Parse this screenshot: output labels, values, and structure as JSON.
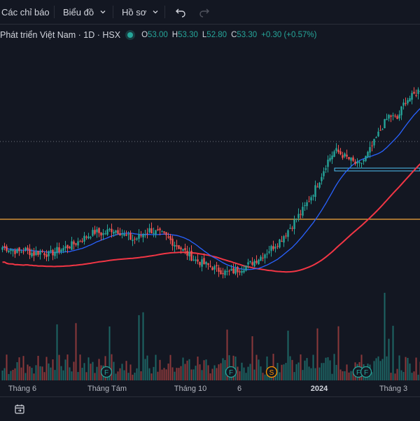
{
  "toolbar": {
    "indicators_label": "Các chỉ báo",
    "chart_type_label": "Biểu đồ",
    "profile_label": "Hồ sơ"
  },
  "legend": {
    "symbol": "Phát triển Việt Nam · 1D · HSX",
    "open_label": "O",
    "open": "53.00",
    "high_label": "H",
    "high": "53.30",
    "low_label": "L",
    "low": "52.80",
    "close_label": "C",
    "close": "53.30",
    "change": "+0.30 (+0.57%)"
  },
  "colors": {
    "up": "#26a69a",
    "down": "#ef5350",
    "ma_fast": "#2962ff",
    "ma_slow": "#f23645",
    "hline_orange": "#f7a93b",
    "hline_dotted": "#b2b5be",
    "hline_blue": "#4fc3f7"
  },
  "chart_data": {
    "type": "candlestick",
    "x_ticks": [
      "Tháng 6",
      "Tháng Tám",
      "Tháng 10",
      "6",
      "2024",
      "Tháng 3"
    ],
    "event_markers": [
      "F",
      "F",
      "S",
      "F",
      "F"
    ],
    "close_series": [
      34.0,
      33.8,
      33.4,
      33.7,
      33.2,
      33.5,
      33.1,
      33.6,
      33.9,
      34.3,
      34.8,
      35.4,
      35.9,
      35.6,
      36.2,
      36.0,
      35.3,
      34.9,
      35.5,
      36.1,
      35.8,
      35.4,
      34.6,
      33.9,
      33.1,
      32.4,
      32.0,
      31.6,
      31.2,
      30.9,
      31.1,
      31.5,
      32.0,
      32.6,
      33.3,
      34.1,
      35.0,
      36.2,
      37.5,
      38.8,
      40.4,
      42.3,
      44.5,
      45.8,
      45.2,
      44.6,
      43.9,
      45.0,
      46.7,
      48.6,
      50.1,
      49.6,
      51.8,
      52.4,
      53.3
    ],
    "ma_fast": "blue moving average",
    "ma_slow": "red moving average",
    "volume_shown": true
  },
  "bottom": {
    "icon": "goto-date-icon"
  }
}
